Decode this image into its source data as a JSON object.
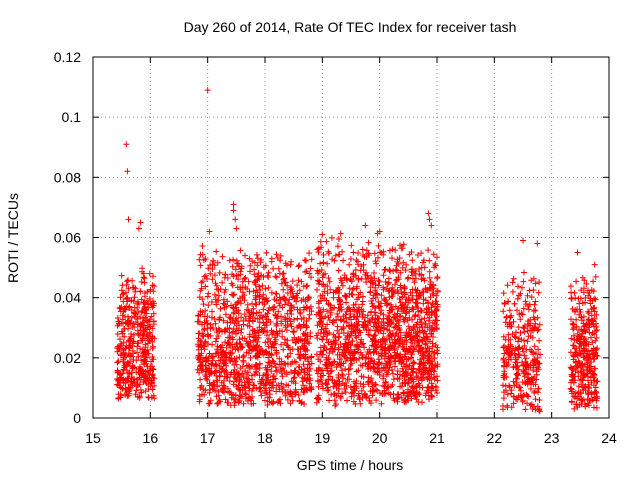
{
  "chart_data": {
    "type": "scatter",
    "title": "Day 260 of 2014, Rate Of TEC Index for receiver tash",
    "xlabel": "GPS time / hours",
    "ylabel": "ROTI / TECUs",
    "xlim": [
      15,
      24
    ],
    "ylim": [
      0,
      0.12
    ],
    "xticks": [
      15,
      16,
      17,
      18,
      19,
      20,
      21,
      22,
      23,
      24
    ],
    "xtick_labels": [
      "15",
      "16",
      "17",
      "18",
      "19",
      "20",
      "21",
      "22",
      "23",
      "24"
    ],
    "yticks": [
      0,
      0.02,
      0.04,
      0.06,
      0.08,
      0.1,
      0.12
    ],
    "ytick_labels": [
      "0",
      "0.02",
      "0.04",
      "0.06",
      "0.08",
      "0.1",
      "0.12"
    ],
    "grid": true,
    "marker": "+",
    "marker_color": "#ff0000",
    "series": [
      {
        "name": "ROTI",
        "clusters": [
          {
            "x_range": [
              15.42,
              16.07
            ],
            "y_range": [
              0.006,
              0.052
            ],
            "count": 420
          },
          {
            "x_range": [
              16.82,
              18.82
            ],
            "y_range": [
              0.004,
              0.058
            ],
            "count": 1100
          },
          {
            "x_range": [
              18.9,
              20.15
            ],
            "y_range": [
              0.004,
              0.062
            ],
            "count": 750
          },
          {
            "x_range": [
              20.15,
              21.02
            ],
            "y_range": [
              0.005,
              0.06
            ],
            "count": 650
          },
          {
            "x_range": [
              22.15,
              22.8
            ],
            "y_range": [
              0.002,
              0.05
            ],
            "count": 300
          },
          {
            "x_range": [
              23.33,
              23.8
            ],
            "y_range": [
              0.003,
              0.05
            ],
            "count": 320
          }
        ],
        "highlights": [
          {
            "x": 15.58,
            "y": 0.091
          },
          {
            "x": 15.6,
            "y": 0.082
          },
          {
            "x": 17.0,
            "y": 0.109
          },
          {
            "x": 15.62,
            "y": 0.066
          },
          {
            "x": 15.83,
            "y": 0.065
          },
          {
            "x": 15.8,
            "y": 0.063
          },
          {
            "x": 17.03,
            "y": 0.062
          },
          {
            "x": 17.45,
            "y": 0.071
          },
          {
            "x": 17.45,
            "y": 0.069
          },
          {
            "x": 17.48,
            "y": 0.066
          },
          {
            "x": 17.5,
            "y": 0.063
          },
          {
            "x": 19.75,
            "y": 0.064
          },
          {
            "x": 19.0,
            "y": 0.061
          },
          {
            "x": 20.0,
            "y": 0.062
          },
          {
            "x": 20.85,
            "y": 0.068
          },
          {
            "x": 20.87,
            "y": 0.066
          },
          {
            "x": 20.9,
            "y": 0.064
          },
          {
            "x": 22.5,
            "y": 0.059
          },
          {
            "x": 22.75,
            "y": 0.058
          },
          {
            "x": 23.45,
            "y": 0.055
          },
          {
            "x": 23.75,
            "y": 0.051
          }
        ]
      }
    ]
  }
}
